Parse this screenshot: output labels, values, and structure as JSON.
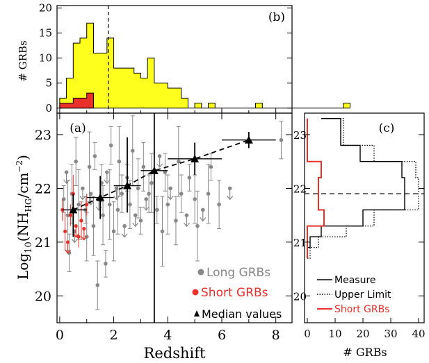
{
  "chart_data": [
    {
      "panel": "a",
      "type": "scatter",
      "panel_label": "(a)",
      "xlabel": "Redshift",
      "ylabel": "Log10(NH_HG/cm^-2)",
      "xlim": [
        -0.1,
        8.6
      ],
      "ylim": [
        19.5,
        23.4
      ],
      "xticks": [
        "0",
        "2",
        "4",
        "6",
        "8"
      ],
      "yticks": [
        "20",
        "21",
        "22",
        "23"
      ],
      "legend_position": "bottom-right",
      "legend": [
        {
          "label": "Long GRBs",
          "color": "#888888",
          "marker": "circle"
        },
        {
          "label": "Short GRBs",
          "color": "#e8312a",
          "marker": "circle"
        },
        {
          "label": "Median values",
          "color": "#000000",
          "marker": "triangle"
        }
      ],
      "series": [
        {
          "name": "Median values",
          "points": [
            {
              "x": 0.5,
              "y": 21.6,
              "xerr": [
                0.4,
                0.5
              ],
              "yerr": [
                0.5,
                0.3
              ]
            },
            {
              "x": 1.5,
              "y": 21.83,
              "xerr": [
                0.5,
                0.5
              ],
              "yerr": [
                0.4,
                0.4
              ]
            },
            {
              "x": 2.5,
              "y": 22.05,
              "xerr": [
                0.5,
                0.5
              ],
              "yerr": [
                0.5,
                0.9
              ]
            },
            {
              "x": 3.5,
              "y": 22.33,
              "xerr": [
                0.5,
                0.5
              ],
              "yerr": [
                2.9,
                1.2
              ]
            },
            {
              "x": 5.0,
              "y": 22.55,
              "xerr": [
                1.0,
                1.0
              ],
              "yerr": [
                0.3,
                0.3
              ]
            },
            {
              "x": 7.0,
              "y": 22.9,
              "xerr": [
                1.0,
                1.0
              ],
              "yerr": [
                0.15,
                0.15
              ]
            }
          ]
        },
        {
          "name": "Long GRBs",
          "points": [
            {
              "x": 0.15,
              "y": 21.8
            },
            {
              "x": 0.25,
              "y": 22.3
            },
            {
              "x": 0.3,
              "y": 21.5
            },
            {
              "x": 0.35,
              "y": 20.8
            },
            {
              "x": 0.45,
              "y": 21.9
            },
            {
              "x": 0.55,
              "y": 21.2
            },
            {
              "x": 0.6,
              "y": 22.5
            },
            {
              "x": 0.7,
              "y": 21.7
            },
            {
              "x": 0.8,
              "y": 21.4
            },
            {
              "x": 0.85,
              "y": 22.0
            },
            {
              "x": 0.95,
              "y": 21.6
            },
            {
              "x": 1.0,
              "y": 21.1
            },
            {
              "x": 1.1,
              "y": 22.4
            },
            {
              "x": 1.15,
              "y": 21.9
            },
            {
              "x": 1.25,
              "y": 21.3
            },
            {
              "x": 1.3,
              "y": 22.6
            },
            {
              "x": 1.4,
              "y": 20.2
            },
            {
              "x": 1.45,
              "y": 21.8
            },
            {
              "x": 1.55,
              "y": 22.1
            },
            {
              "x": 1.6,
              "y": 21.5
            },
            {
              "x": 1.7,
              "y": 20.6
            },
            {
              "x": 1.75,
              "y": 22.3
            },
            {
              "x": 1.85,
              "y": 21.7
            },
            {
              "x": 1.9,
              "y": 22.8
            },
            {
              "x": 2.0,
              "y": 21.2
            },
            {
              "x": 2.1,
              "y": 22.0
            },
            {
              "x": 2.15,
              "y": 21.6
            },
            {
              "x": 2.2,
              "y": 22.5
            },
            {
              "x": 2.3,
              "y": 21.9
            },
            {
              "x": 2.4,
              "y": 21.3
            },
            {
              "x": 2.5,
              "y": 22.2
            },
            {
              "x": 2.6,
              "y": 21.7
            },
            {
              "x": 2.7,
              "y": 22.7
            },
            {
              "x": 2.8,
              "y": 21.5
            },
            {
              "x": 2.9,
              "y": 22.0
            },
            {
              "x": 3.0,
              "y": 21.4
            },
            {
              "x": 3.1,
              "y": 22.4
            },
            {
              "x": 3.2,
              "y": 21.8
            },
            {
              "x": 3.3,
              "y": 21.9
            },
            {
              "x": 3.4,
              "y": 22.1
            },
            {
              "x": 3.6,
              "y": 21.6
            },
            {
              "x": 3.7,
              "y": 22.6
            },
            {
              "x": 3.8,
              "y": 21.2
            },
            {
              "x": 3.9,
              "y": 22.3
            },
            {
              "x": 4.0,
              "y": 21.7
            },
            {
              "x": 4.1,
              "y": 22.0
            },
            {
              "x": 4.3,
              "y": 21.4
            },
            {
              "x": 4.4,
              "y": 22.5
            },
            {
              "x": 4.5,
              "y": 21.9
            },
            {
              "x": 4.7,
              "y": 21.5
            },
            {
              "x": 4.8,
              "y": 22.2
            },
            {
              "x": 5.0,
              "y": 21.8
            },
            {
              "x": 5.1,
              "y": 21.3
            },
            {
              "x": 5.3,
              "y": 21.6
            },
            {
              "x": 5.5,
              "y": 21.9
            },
            {
              "x": 5.6,
              "y": 22.4
            },
            {
              "x": 5.9,
              "y": 21.7
            },
            {
              "x": 6.3,
              "y": 22.0
            },
            {
              "x": 8.2,
              "y": 22.9
            }
          ]
        },
        {
          "name": "Short GRBs",
          "points": [
            {
              "x": 0.1,
              "y": 21.6
            },
            {
              "x": 0.2,
              "y": 21.2
            },
            {
              "x": 0.3,
              "y": 21.0
            },
            {
              "x": 0.4,
              "y": 21.5
            },
            {
              "x": 0.5,
              "y": 21.9
            },
            {
              "x": 0.6,
              "y": 21.3
            },
            {
              "x": 0.7,
              "y": 21.1
            },
            {
              "x": 0.8,
              "y": 21.4
            },
            {
              "x": 0.9,
              "y": 21.25
            },
            {
              "x": 1.0,
              "y": 21.7
            }
          ]
        }
      ]
    },
    {
      "panel": "b",
      "type": "histogram",
      "panel_label": "(b)",
      "ylabel": "# GRBs",
      "yticks": [
        "0",
        "5",
        "10",
        "15",
        "20"
      ],
      "ylim": [
        -1,
        20.5
      ],
      "bin_width": 0.25,
      "bin_start": 0.0,
      "median_line_x": 1.8,
      "series": [
        {
          "name": "Long GRBs",
          "color": "#ffff1e",
          "counts": [
            2,
            6,
            13,
            14,
            17,
            11,
            11,
            14,
            8,
            8,
            8,
            7,
            6,
            10,
            5,
            5,
            4,
            4,
            2,
            0,
            1,
            0,
            1,
            0,
            0,
            0,
            0,
            0,
            0,
            1,
            0,
            0,
            0,
            0,
            0,
            0,
            0,
            0,
            0,
            0,
            0,
            0,
            1
          ]
        },
        {
          "name": "Short GRBs",
          "color": "#e8312a",
          "counts": [
            1,
            1,
            2,
            2,
            3
          ]
        }
      ]
    },
    {
      "panel": "c",
      "type": "histogram",
      "orientation": "horizontal",
      "panel_label": "(c)",
      "xlabel": "# GRBs",
      "xticks": [
        "0",
        "10",
        "20",
        "30",
        "40"
      ],
      "xlim": [
        -1,
        42
      ],
      "median_line_y": 21.9,
      "bins": [
        20.7,
        20.9,
        21.1,
        21.3,
        21.6,
        22.2,
        22.5,
        22.8,
        23.3
      ],
      "legend": [
        {
          "label": "Measure",
          "style": "solid",
          "color": "#000000"
        },
        {
          "label": "Upper Limit",
          "style": "dotted",
          "color": "#000000"
        },
        {
          "label": "Short GRBs",
          "style": "solid",
          "color": "#e8312a"
        }
      ],
      "series": [
        {
          "name": "Measure",
          "counts": [
            0,
            1,
            5,
            20,
            35,
            34,
            19,
            12,
            5
          ]
        },
        {
          "name": "Upper Limit",
          "counts": [
            1,
            4,
            14,
            24,
            40,
            39,
            24,
            13,
            5
          ]
        },
        {
          "name": "Short GRBs",
          "counts": [
            0,
            0,
            0,
            6,
            4,
            5,
            0,
            0,
            0
          ]
        }
      ]
    }
  ]
}
